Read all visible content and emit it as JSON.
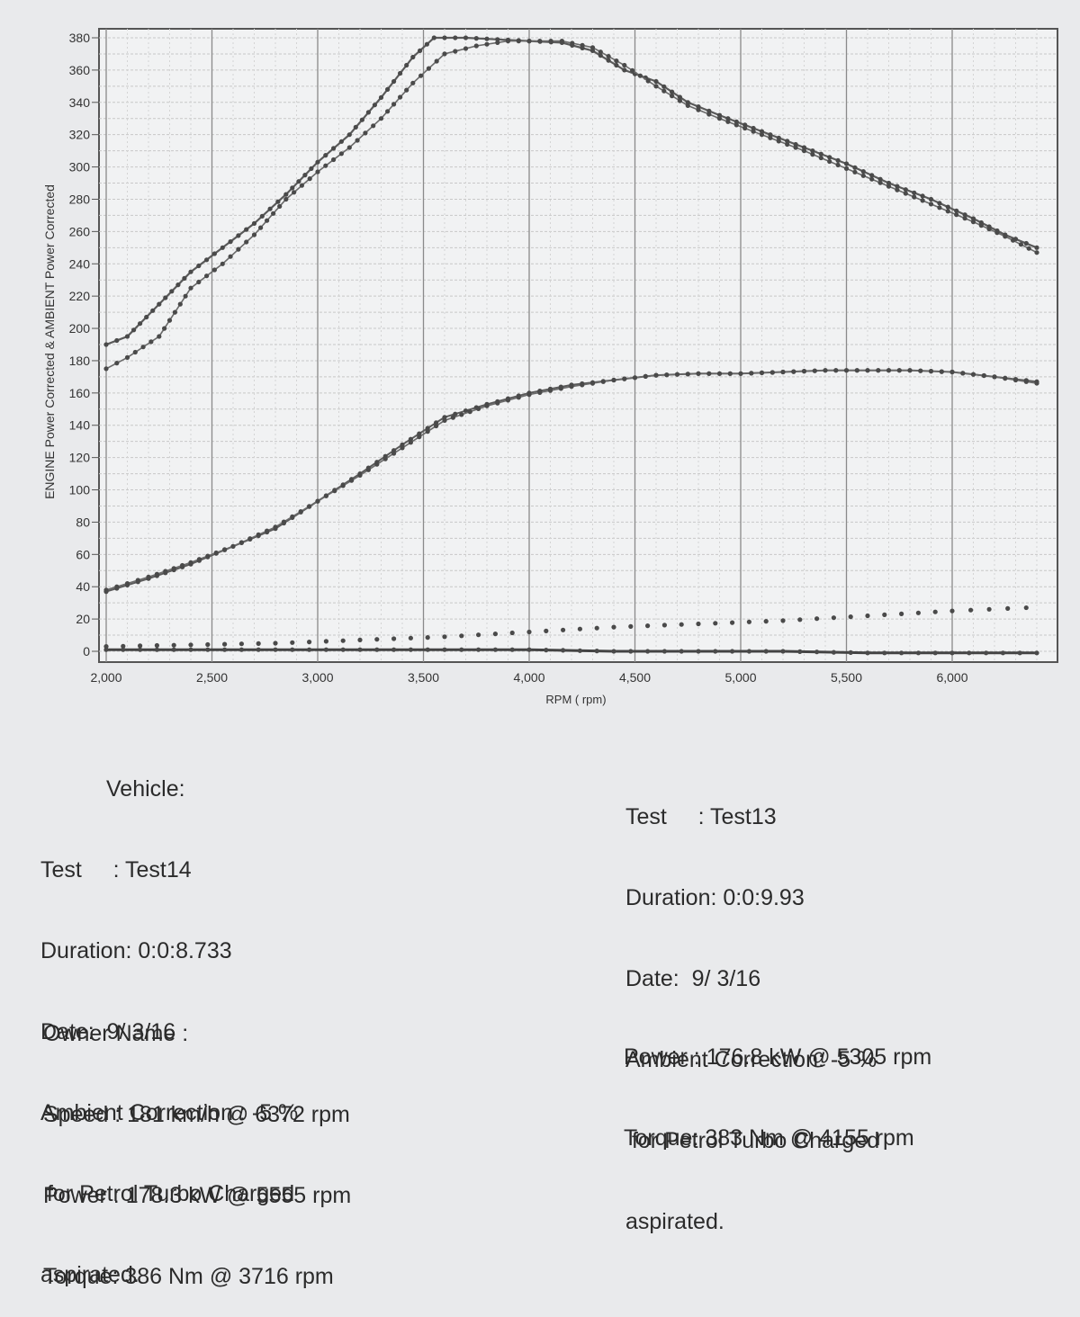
{
  "chart_data": {
    "type": "line",
    "ylabel": "ENGINE Power Corrected & AMBIENT Power Corrected",
    "xlabel": "RPM ( rpm)",
    "xlim": [
      2000,
      6400
    ],
    "ylim": [
      0,
      385
    ],
    "x_ticks": [
      "2,000",
      "2,500",
      "3,000",
      "3,500",
      "4,000",
      "4,500",
      "5,000",
      "5,500",
      "6,000"
    ],
    "x_tick_values": [
      2000,
      2500,
      3000,
      3500,
      4000,
      4500,
      5000,
      5500,
      6000
    ],
    "y_ticks": [
      "0",
      "20",
      "40",
      "60",
      "80",
      "100",
      "120",
      "140",
      "160",
      "180",
      "200",
      "220",
      "240",
      "260",
      "280",
      "300",
      "320",
      "340",
      "360",
      "380"
    ],
    "y_tick_values": [
      0,
      20,
      40,
      60,
      80,
      100,
      120,
      140,
      160,
      180,
      200,
      220,
      240,
      260,
      280,
      300,
      320,
      340,
      360,
      380
    ],
    "grid": true,
    "series": [
      {
        "x": [
          2000,
          2100,
          2250,
          2400,
          2550,
          2700,
          2850,
          3000,
          3150,
          3300,
          3450,
          3550,
          3700,
          3850,
          4000,
          4155,
          4300,
          4450,
          4600,
          4750,
          4900,
          5100,
          5300,
          5500,
          5700,
          5900,
          6100,
          6250,
          6400
        ],
        "values": [
          190,
          195,
          215,
          235,
          250,
          265,
          283,
          303,
          320,
          343,
          368,
          380,
          380,
          379,
          378,
          377,
          372,
          360,
          353,
          340,
          332,
          322,
          312,
          302,
          290,
          280,
          268,
          258,
          250
        ]
      },
      {
        "x": [
          2000,
          2100,
          2250,
          2400,
          2550,
          2700,
          2850,
          3000,
          3150,
          3300,
          3450,
          3600,
          3750,
          3900,
          4050,
          4155,
          4300,
          4450,
          4600,
          4750,
          4900,
          5100,
          5300,
          5500,
          5700,
          5900,
          6100,
          6250,
          6400
        ],
        "values": [
          175,
          182,
          195,
          225,
          240,
          258,
          280,
          297,
          312,
          330,
          352,
          370,
          375,
          378,
          378,
          378,
          374,
          363,
          350,
          338,
          330,
          320,
          310,
          299,
          288,
          277,
          266,
          257,
          247
        ]
      },
      {
        "x": [
          2000,
          2200,
          2400,
          2600,
          2800,
          3000,
          3200,
          3400,
          3600,
          3800,
          4000,
          4200,
          4400,
          4600,
          4800,
          5000,
          5200,
          5400,
          5600,
          5800,
          6000,
          6200,
          6400
        ],
        "values": [
          37,
          45,
          54,
          65,
          76,
          93,
          110,
          128,
          145,
          153,
          160,
          165,
          168,
          171,
          172,
          172,
          173,
          174,
          174,
          174,
          173,
          170,
          167
        ]
      },
      {
        "x": [
          2000,
          2200,
          2400,
          2600,
          2800,
          3000,
          3200,
          3400,
          3600,
          3800,
          4000,
          4200,
          4400,
          4600,
          4800,
          5000,
          5200,
          5400,
          5600,
          5800,
          6000,
          6200,
          6400
        ],
        "values": [
          38,
          46,
          55,
          65,
          77,
          93,
          109,
          126,
          143,
          152,
          159,
          164,
          168,
          171,
          172,
          172,
          173,
          174,
          174,
          174,
          173,
          170,
          166
        ]
      },
      {
        "x": [
          2000,
          2400,
          2800,
          3200,
          3600,
          4000,
          4400,
          4800,
          5200,
          5600,
          6000,
          6350
        ],
        "values": [
          3,
          4,
          5,
          7,
          9,
          12,
          15,
          17,
          19,
          22,
          25,
          27
        ]
      },
      {
        "x": [
          2000,
          2400,
          2800,
          3200,
          3600,
          4000,
          4400,
          4800,
          5200,
          5600,
          6000,
          6400
        ],
        "values": [
          1,
          1,
          1,
          1,
          1,
          1,
          0,
          0,
          0,
          -1,
          -1,
          -1
        ]
      }
    ]
  },
  "left_block": {
    "vehicle": "Vehicle:",
    "test": "Test     : Test14",
    "duration": "Duration: 0:0:8.733",
    "date": "Date:  9/ 3/16",
    "ambient": "Ambient Correction : -5 %",
    "correction_fuel": " for Petrol Turbo Charged",
    "aspirated": "aspirated.",
    "owner": "Owner Name :",
    "speed": "Speed : 181 km/h @ 6372 rpm",
    "power": "Power : 178.3 kW @ 5555 rpm",
    "torque": "Torque: 386 Nm @ 3716 rpm"
  },
  "right_block": {
    "test": "Test     : Test13",
    "duration": "Duration: 0:0:9.93",
    "date": "Date:  9/ 3/16",
    "ambient": "Ambient Correction: -5 %",
    "correction_fuel": " for Petrol Turbo Charged",
    "aspirated": "aspirated.",
    "power": "Power : 176.8 kW @ 5305 rpm",
    "torque": "Torque: 383 Nm @ 4155 rpm"
  }
}
